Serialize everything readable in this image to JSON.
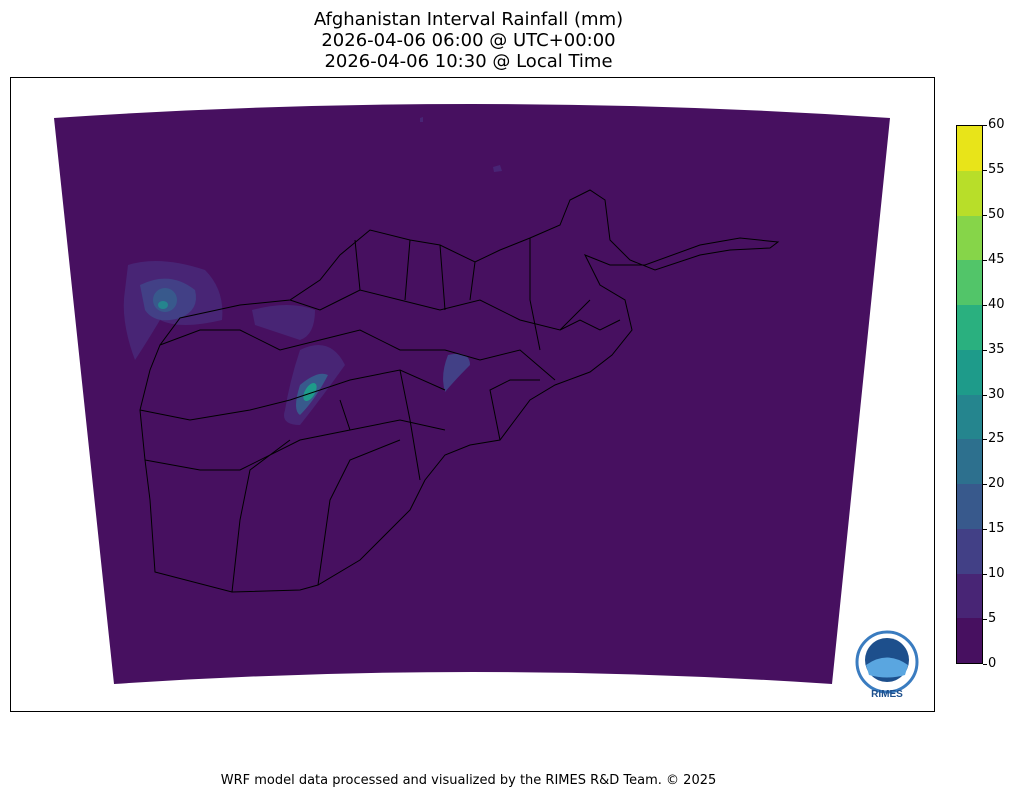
{
  "title_lines": [
    "Afghanistan Interval Rainfall (mm)",
    "2026-04-06 06:00 @ UTC+00:00",
    "2026-04-06 10:30 @ Local Time"
  ],
  "colorbar": {
    "ticks": [
      "0",
      "5",
      "10",
      "15",
      "20",
      "25",
      "30",
      "35",
      "40",
      "45",
      "50",
      "55",
      "60"
    ],
    "colors": [
      "#471060",
      "#482575",
      "#424086",
      "#38598c",
      "#2d708e",
      "#25858e",
      "#1e9b8a",
      "#2ab07f",
      "#52c569",
      "#86d549",
      "#b8de29",
      "#e8e419"
    ]
  },
  "logo": {
    "text": "RIMES"
  },
  "footer": "WRF model data processed and visualized by the RIMES R&D Team. © 2025"
}
